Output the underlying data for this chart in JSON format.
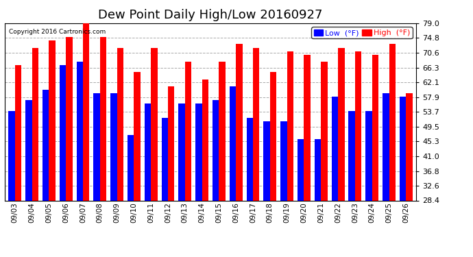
{
  "title": "Dew Point Daily High/Low 20160927",
  "copyright": "Copyright 2016 Cartronics.com",
  "dates": [
    "09/03",
    "09/04",
    "09/05",
    "09/06",
    "09/07",
    "09/08",
    "09/09",
    "09/10",
    "09/11",
    "09/12",
    "09/13",
    "09/14",
    "09/15",
    "09/16",
    "09/17",
    "09/18",
    "09/19",
    "09/20",
    "09/21",
    "09/22",
    "09/23",
    "09/24",
    "09/25",
    "09/26"
  ],
  "low_values": [
    54,
    57,
    60,
    67,
    68,
    59,
    59,
    47,
    56,
    52,
    56,
    56,
    57,
    61,
    52,
    51,
    51,
    46,
    46,
    58,
    54,
    54,
    59,
    58
  ],
  "high_values": [
    67,
    72,
    74,
    75,
    79,
    75,
    72,
    65,
    72,
    61,
    68,
    63,
    68,
    73,
    72,
    65,
    71,
    70,
    68,
    72,
    71,
    70,
    73,
    59
  ],
  "low_color": "#0000ff",
  "high_color": "#ff0000",
  "bg_color": "#ffffff",
  "grid_color": "#aaaaaa",
  "yticks": [
    28.4,
    32.6,
    36.8,
    41.0,
    45.3,
    49.5,
    53.7,
    57.9,
    62.1,
    66.3,
    70.6,
    74.8,
    79.0
  ],
  "ymin": 28.4,
  "ymax": 79.0,
  "title_fontsize": 13,
  "legend_labels": [
    "Low  (°F)",
    "High  (°F)"
  ]
}
